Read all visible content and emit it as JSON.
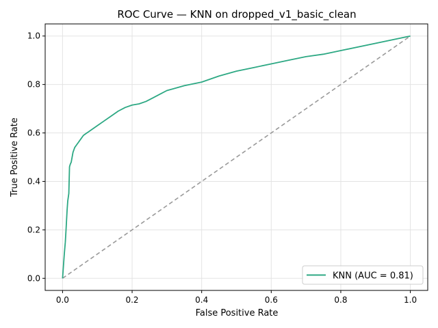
{
  "chart_data": {
    "type": "line",
    "title": "ROC Curve — KNN on dropped_v1_basic_clean",
    "xlabel": "False Positive Rate",
    "ylabel": "True Positive Rate",
    "xlim": [
      -0.05,
      1.05
    ],
    "ylim": [
      -0.05,
      1.05
    ],
    "x_ticks": [
      0.0,
      0.2,
      0.4,
      0.6,
      0.8,
      1.0
    ],
    "y_ticks": [
      0.0,
      0.2,
      0.4,
      0.6,
      0.8,
      1.0
    ],
    "x_tick_labels": [
      "0.0",
      "0.2",
      "0.4",
      "0.6",
      "0.8",
      "1.0"
    ],
    "y_tick_labels": [
      "0.0",
      "0.2",
      "0.4",
      "0.6",
      "0.8",
      "1.0"
    ],
    "grid": true,
    "legend_position": "lower-right",
    "series": [
      {
        "name": "KNN (AUC = 0.81)",
        "color": "#2ca883",
        "style": "solid",
        "x": [
          0.0,
          0.005,
          0.008,
          0.01,
          0.013,
          0.015,
          0.018,
          0.02,
          0.022,
          0.025,
          0.03,
          0.035,
          0.04,
          0.045,
          0.05,
          0.06,
          0.07,
          0.08,
          0.1,
          0.12,
          0.14,
          0.16,
          0.18,
          0.2,
          0.22,
          0.24,
          0.26,
          0.28,
          0.3,
          0.35,
          0.4,
          0.45,
          0.5,
          0.55,
          0.6,
          0.65,
          0.7,
          0.75,
          0.8,
          1.0
        ],
        "y": [
          0.0,
          0.1,
          0.15,
          0.2,
          0.28,
          0.32,
          0.35,
          0.46,
          0.47,
          0.48,
          0.52,
          0.54,
          0.55,
          0.56,
          0.57,
          0.59,
          0.6,
          0.61,
          0.63,
          0.65,
          0.67,
          0.69,
          0.705,
          0.715,
          0.72,
          0.73,
          0.745,
          0.76,
          0.775,
          0.795,
          0.81,
          0.835,
          0.855,
          0.87,
          0.885,
          0.9,
          0.915,
          0.925,
          0.94,
          1.0
        ]
      },
      {
        "name": "",
        "color": "#999999",
        "style": "dashed",
        "x": [
          0.0,
          1.0
        ],
        "y": [
          0.0,
          1.0
        ]
      }
    ]
  }
}
